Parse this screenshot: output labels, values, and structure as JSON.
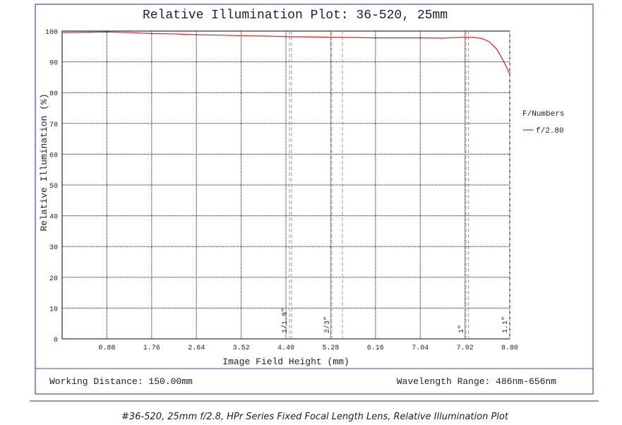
{
  "chart_data": {
    "type": "line",
    "title": "Relative Illumination Plot: 36-520, 25mm",
    "xlabel": "Image Field Height (mm)",
    "ylabel": "Relative Illumination (%)",
    "xlim": [
      0,
      8.8
    ],
    "ylim": [
      0,
      100
    ],
    "xticks": [
      0.88,
      1.76,
      2.64,
      3.52,
      {
        "value": 4.4,
        "label": "4.40"
      },
      5.28,
      6.16,
      7.04,
      7.92,
      {
        "value": 8.8,
        "label": "8.80"
      }
    ],
    "yticks": [
      0,
      10,
      20,
      30,
      40,
      50,
      60,
      70,
      80,
      90,
      100
    ],
    "grid": true,
    "legend_title": "F/Numbers",
    "legend": "right",
    "series": [
      {
        "name": "f/2.80",
        "color": "#e02020",
        "x": [
          0,
          0.44,
          0.88,
          1.32,
          1.76,
          2.2,
          2.64,
          3.08,
          3.52,
          3.96,
          4.4,
          4.84,
          5.28,
          5.72,
          6.16,
          6.6,
          7.04,
          7.48,
          7.92,
          8.1,
          8.25,
          8.4,
          8.55,
          8.7,
          8.8
        ],
        "values": [
          99.5,
          99.6,
          99.7,
          99.5,
          99.2,
          99.1,
          98.8,
          98.7,
          98.5,
          98.4,
          98.2,
          98.1,
          98.0,
          97.9,
          97.8,
          97.8,
          97.8,
          97.7,
          98.0,
          97.9,
          97.6,
          96.5,
          94,
          89.5,
          86
        ]
      }
    ],
    "sensors": [
      {
        "label": "1/1.8\"",
        "x": [
          4.47,
          4.51
        ]
      },
      {
        "label": "2/3\"",
        "x": [
          5.3,
          5.51
        ]
      },
      {
        "label": "1\"",
        "x": [
          7.94,
          7.99
        ]
      },
      {
        "label": "1.1\"",
        "x": [
          8.8
        ]
      }
    ]
  },
  "footer": {
    "left": "Working Distance: 150.00mm",
    "right": "Wavelength Range: 486nm-656nm"
  },
  "caption": "#36-520, 25mm f/2.8, HPr Series Fixed Focal Length Lens, Relative Illumination Plot"
}
